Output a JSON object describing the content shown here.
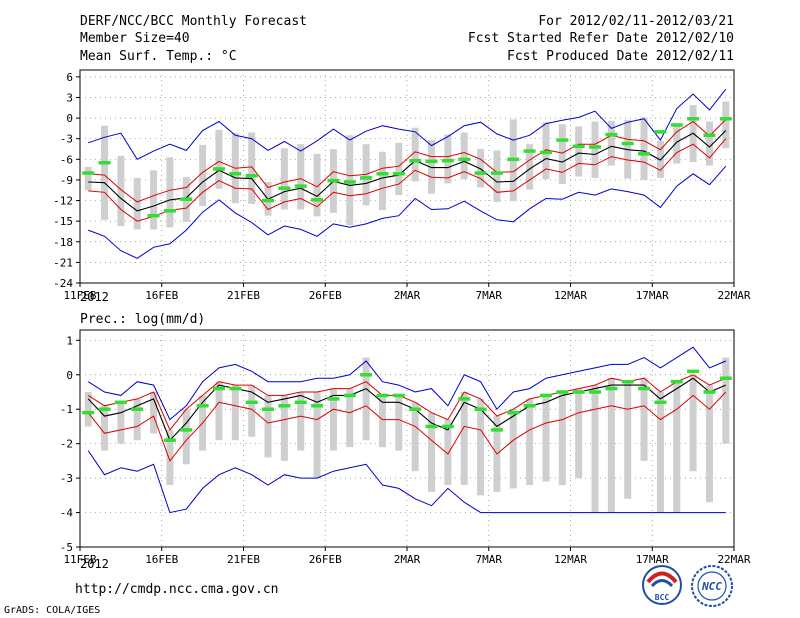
{
  "header": {
    "title": "DERF/NCC/BCC Monthly Forecast",
    "member_size": "Member Size=40",
    "period": "For 2012/02/11-2012/03/21",
    "fcst_started": "Fcst Started Refer Date 2012/02/10",
    "fcst_produced": "Fcst Produced Date 2012/02/11"
  },
  "footer": {
    "url": "http://cmdp.ncc.cma.gov.cn",
    "credit": "GrADS: COLA/IGES",
    "logo_bcc_text": "BCC",
    "logo_ncc_text": "NCC"
  },
  "colors": {
    "envelope": "#0000cc",
    "spread": "#dd0000",
    "mean": "#000000",
    "bar": "#cfcfcf",
    "obs": "#33dd33",
    "grid": "#888888"
  },
  "chart_data": [
    {
      "type": "line",
      "title": "Mean Surf. Temp.: °C",
      "xlabel": "",
      "ylabel": "",
      "x_tick_labels": [
        "11FEB",
        "16FEB",
        "21FEB",
        "26FEB",
        "2MAR",
        "7MAR",
        "12MAR",
        "17MAR",
        "22MAR"
      ],
      "x_year_label": "2012",
      "ylim": [
        -24,
        7
      ],
      "y_ticks": [
        6,
        3,
        0,
        -3,
        -6,
        -9,
        -12,
        -15,
        -18,
        -21,
        -24
      ],
      "grid": true,
      "days": 40,
      "series": [
        {
          "name": "mean",
          "values": [
            -9.3,
            -9.4,
            -11.7,
            -13.5,
            -12.8,
            -11.9,
            -11.6,
            -9.3,
            -7.6,
            -8.7,
            -8.8,
            -11.8,
            -10.7,
            -10.2,
            -11.4,
            -9.2,
            -9.8,
            -9.5,
            -8.7,
            -8.3,
            -6.2,
            -7.2,
            -7.2,
            -6.3,
            -7.4,
            -9.3,
            -9.2,
            -7.4,
            -5.9,
            -6.4,
            -5.1,
            -5.3,
            -4.1,
            -4.6,
            -4.8,
            -6.1,
            -3.5,
            -2.2,
            -4.2,
            -1.8
          ]
        },
        {
          "name": "upper_spread",
          "values": [
            -8.1,
            -8.3,
            -10.4,
            -12.2,
            -11.3,
            -10.5,
            -10.1,
            -7.9,
            -6.3,
            -7.3,
            -7.1,
            -10.1,
            -9.3,
            -8.8,
            -10.0,
            -7.8,
            -8.4,
            -8.2,
            -7.3,
            -7.0,
            -4.9,
            -5.6,
            -5.6,
            -5.0,
            -6.0,
            -7.9,
            -7.8,
            -6.1,
            -4.6,
            -5.1,
            -3.8,
            -3.8,
            -2.5,
            -3.1,
            -3.3,
            -4.6,
            -2.0,
            -0.5,
            -2.6,
            -0.2
          ]
        },
        {
          "name": "lower_spread",
          "values": [
            -10.6,
            -10.8,
            -13.3,
            -15.0,
            -14.3,
            -13.4,
            -13.1,
            -10.8,
            -9.1,
            -10.2,
            -10.3,
            -13.3,
            -12.2,
            -11.7,
            -12.9,
            -10.8,
            -11.3,
            -11.0,
            -10.2,
            -9.6,
            -7.6,
            -8.6,
            -8.7,
            -7.8,
            -8.8,
            -10.8,
            -10.6,
            -9.0,
            -7.4,
            -7.9,
            -6.6,
            -6.8,
            -5.6,
            -6.1,
            -6.4,
            -7.6,
            -5.0,
            -3.8,
            -5.8,
            -3.0
          ]
        },
        {
          "name": "max_envelope",
          "values": [
            -3.6,
            -2.8,
            -2.2,
            -6.0,
            -4.8,
            -3.8,
            -4.7,
            -1.8,
            -0.5,
            -2.5,
            -3.0,
            -4.7,
            -3.4,
            -4.8,
            -3.3,
            -1.6,
            -3.2,
            -1.9,
            -1.1,
            -1.6,
            -2.0,
            -4.0,
            -2.7,
            -1.1,
            -0.6,
            -2.3,
            -3.2,
            -2.5,
            -0.8,
            -0.3,
            0.1,
            1.0,
            -1.5,
            -0.6,
            -0.1,
            -3.2,
            1.4,
            3.5,
            1.2,
            4.2
          ]
        },
        {
          "name": "min_envelope",
          "values": [
            -16.3,
            -17.2,
            -19.3,
            -20.4,
            -18.8,
            -18.3,
            -16.3,
            -13.7,
            -11.9,
            -13.8,
            -15.2,
            -17.0,
            -15.7,
            -16.2,
            -17.2,
            -15.4,
            -15.9,
            -15.4,
            -14.6,
            -14.2,
            -11.7,
            -13.3,
            -13.2,
            -12.1,
            -13.5,
            -14.8,
            -15.1,
            -13.2,
            -11.7,
            -11.8,
            -10.8,
            -11.2,
            -10.3,
            -10.7,
            -11.2,
            -13.0,
            -9.9,
            -8.1,
            -9.7,
            -7.0
          ]
        },
        {
          "name": "bar_top",
          "values": [
            -7.1,
            -1.1,
            -5.5,
            -8.7,
            -7.6,
            -5.7,
            -8.6,
            -3.9,
            -1.7,
            -2.2,
            -2.1,
            -9.3,
            -4.4,
            -3.8,
            -5.2,
            -4.5,
            -2.5,
            -3.8,
            -4.9,
            -3.6,
            -1.4,
            -3.2,
            -2.4,
            -2.1,
            -4.5,
            -4.7,
            -0.2,
            -3.8,
            -0.6,
            -0.9,
            -1.2,
            -0.5,
            -0.4,
            -0.3,
            0.1,
            -3.3,
            -1.2,
            1.9,
            -0.5,
            2.4
          ]
        },
        {
          "name": "bar_bottom",
          "values": [
            -10.5,
            -14.8,
            -15.7,
            -16.2,
            -16.2,
            -15.9,
            -15.1,
            -12.8,
            -10.3,
            -12.4,
            -12.5,
            -14.2,
            -13.3,
            -13.3,
            -14.3,
            -13.8,
            -15.6,
            -12.7,
            -13.4,
            -11.2,
            -9.2,
            -11.0,
            -9.5,
            -8.9,
            -10.1,
            -12.2,
            -12.1,
            -10.4,
            -8.9,
            -9.6,
            -8.5,
            -8.7,
            -6.9,
            -8.8,
            -9.0,
            -8.7,
            -6.6,
            -6.4,
            -6.9,
            -4.4
          ]
        },
        {
          "name": "observation",
          "values": [
            -8.0,
            -6.5,
            null,
            null,
            -14.2,
            -13.5,
            -11.8,
            null,
            -7.4,
            -8.1,
            -8.4,
            -12.0,
            -10.2,
            -9.9,
            -11.9,
            -9.1,
            -9.3,
            -8.7,
            -8.1,
            -8.1,
            -6.2,
            -6.3,
            -6.2,
            -6.0,
            -8.0,
            -8.0,
            -6.0,
            -4.8,
            -5.0,
            -3.2,
            -4.1,
            -4.2,
            -2.4,
            -3.7,
            -5.2,
            -2.0,
            -1.0,
            -0.1,
            -2.5,
            -0.1
          ]
        }
      ]
    },
    {
      "type": "line",
      "title": "Prec.: log(mm/d)",
      "xlabel": "",
      "ylabel": "",
      "x_tick_labels": [
        "11FEB",
        "16FEB",
        "21FEB",
        "26FEB",
        "2MAR",
        "7MAR",
        "12MAR",
        "17MAR",
        "22MAR"
      ],
      "x_year_label": "2012",
      "ylim": [
        -5,
        1.3
      ],
      "y_ticks": [
        1,
        0,
        -1,
        -2,
        -3,
        -4,
        -5
      ],
      "grid": true,
      "days": 40,
      "series": [
        {
          "name": "mean",
          "values": [
            -0.7,
            -1.2,
            -1.1,
            -0.9,
            -0.7,
            -1.9,
            -1.4,
            -0.8,
            -0.3,
            -0.4,
            -0.5,
            -0.8,
            -0.7,
            -0.6,
            -0.8,
            -0.6,
            -0.6,
            -0.4,
            -0.8,
            -0.8,
            -1.0,
            -1.4,
            -1.6,
            -0.8,
            -1.0,
            -1.5,
            -1.2,
            -0.9,
            -0.8,
            -0.6,
            -0.5,
            -0.4,
            -0.3,
            -0.3,
            -0.3,
            -0.7,
            -0.4,
            -0.1,
            -0.5,
            -0.3
          ]
        },
        {
          "name": "upper_spread",
          "values": [
            -0.6,
            -0.9,
            -0.8,
            -0.7,
            -0.5,
            -1.6,
            -1.0,
            -0.6,
            -0.2,
            -0.3,
            -0.3,
            -0.6,
            -0.6,
            -0.5,
            -0.5,
            -0.4,
            -0.4,
            -0.2,
            -0.6,
            -0.6,
            -0.8,
            -1.1,
            -1.3,
            -0.5,
            -0.7,
            -1.2,
            -1.0,
            -0.7,
            -0.6,
            -0.5,
            -0.4,
            -0.3,
            -0.1,
            -0.2,
            -0.1,
            -0.5,
            -0.2,
            0.0,
            -0.3,
            -0.1
          ]
        },
        {
          "name": "lower_spread",
          "values": [
            -1.1,
            -1.7,
            -1.6,
            -1.5,
            -1.2,
            -2.5,
            -1.9,
            -1.4,
            -0.8,
            -0.9,
            -1.0,
            -1.4,
            -1.3,
            -1.2,
            -1.3,
            -1.0,
            -1.1,
            -0.9,
            -1.3,
            -1.3,
            -1.5,
            -1.9,
            -2.3,
            -1.5,
            -1.6,
            -2.3,
            -1.9,
            -1.6,
            -1.4,
            -1.3,
            -1.1,
            -1.0,
            -0.9,
            -1.0,
            -0.9,
            -1.3,
            -1.0,
            -0.6,
            -1.0,
            -0.5
          ]
        },
        {
          "name": "max_envelope",
          "values": [
            -0.2,
            -0.5,
            -0.6,
            -0.2,
            -0.3,
            -1.3,
            -0.9,
            -0.2,
            0.2,
            0.3,
            0.1,
            -0.2,
            -0.2,
            -0.2,
            -0.1,
            -0.1,
            0.0,
            0.4,
            -0.2,
            -0.3,
            -0.5,
            -0.4,
            -0.9,
            0.0,
            -0.2,
            -1.0,
            -0.5,
            -0.4,
            -0.1,
            0.0,
            0.1,
            0.2,
            0.3,
            0.3,
            0.5,
            0.2,
            0.5,
            0.8,
            0.2,
            0.4
          ]
        },
        {
          "name": "min_envelope",
          "values": [
            -2.2,
            -2.9,
            -2.7,
            -2.8,
            -2.6,
            -4.0,
            -3.9,
            -3.3,
            -2.9,
            -2.7,
            -2.9,
            -3.2,
            -2.9,
            -3.0,
            -3.0,
            -2.8,
            -2.7,
            -2.6,
            -3.2,
            -3.3,
            -3.6,
            -3.8,
            -3.3,
            -3.7,
            -4.0,
            -4.0,
            -4.0,
            -4.0,
            -4.0,
            -4.0,
            -4.0,
            -4.0,
            -4.0,
            -4.0,
            -4.0,
            -4.0,
            -4.0,
            -4.0,
            -4.0,
            -4.0
          ]
        },
        {
          "name": "bar_top",
          "values": [
            -0.5,
            -0.9,
            -0.8,
            -0.7,
            -0.5,
            -1.6,
            -1.0,
            -0.6,
            -0.2,
            -0.3,
            -0.3,
            -0.6,
            -0.6,
            -0.5,
            -0.5,
            -0.4,
            -0.4,
            0.5,
            -0.6,
            -0.6,
            -0.8,
            -1.1,
            -1.3,
            -0.5,
            -0.7,
            -1.2,
            -1.0,
            -0.7,
            -0.6,
            -0.5,
            -0.4,
            -0.3,
            -0.1,
            -0.2,
            -0.1,
            -0.5,
            -0.2,
            0.0,
            -0.3,
            0.5
          ]
        },
        {
          "name": "bar_bottom",
          "values": [
            -1.5,
            -2.2,
            -2.0,
            -1.9,
            -1.7,
            -3.2,
            -2.6,
            -2.2,
            -1.9,
            -1.9,
            -1.8,
            -2.4,
            -2.5,
            -2.2,
            -3.0,
            -2.2,
            -2.1,
            -1.9,
            -2.1,
            -2.2,
            -2.8,
            -3.4,
            -3.2,
            -3.2,
            -3.5,
            -3.4,
            -3.3,
            -3.2,
            -3.1,
            -3.2,
            -3.0,
            -4.0,
            -4.0,
            -3.6,
            -2.5,
            -4.0,
            -4.0,
            -2.8,
            -3.7,
            -2.0
          ]
        },
        {
          "name": "observation",
          "values": [
            -1.1,
            -1.0,
            -0.8,
            -1.0,
            null,
            -1.9,
            -1.6,
            -0.9,
            -0.4,
            -0.4,
            -0.8,
            -1.0,
            -0.9,
            -0.8,
            -0.9,
            -0.7,
            -0.6,
            0.0,
            -0.6,
            -0.6,
            -1.0,
            -1.5,
            -1.5,
            -0.7,
            -1.0,
            -1.6,
            -1.1,
            -0.9,
            -0.6,
            -0.5,
            -0.5,
            -0.5,
            -0.4,
            -0.2,
            -0.4,
            -0.8,
            -0.2,
            0.1,
            -0.5,
            -0.1
          ]
        }
      ]
    }
  ]
}
